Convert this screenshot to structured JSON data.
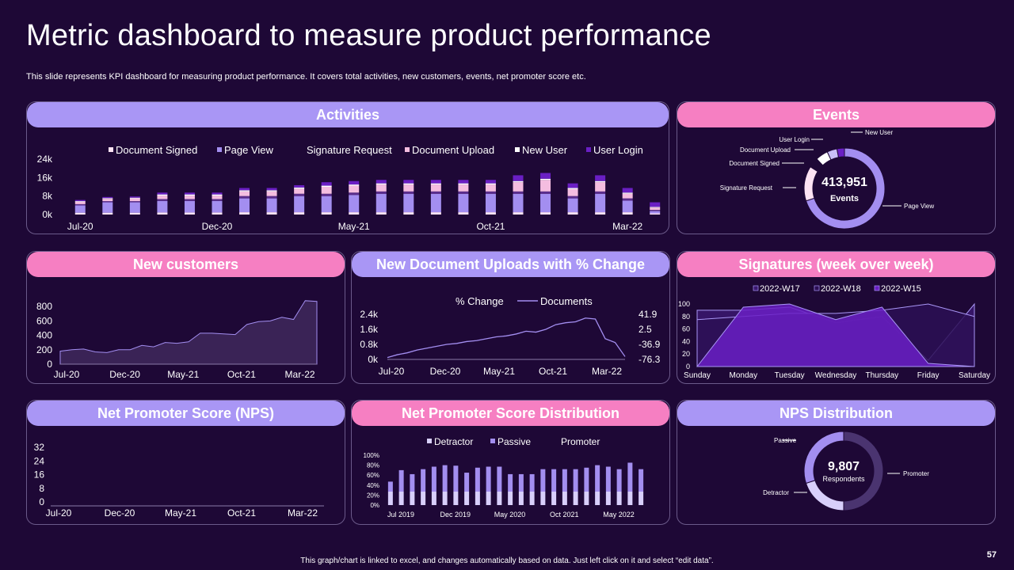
{
  "page": {
    "title": "Metric dashboard to measure product performance",
    "subtitle": "This slide represents KPI dashboard for measuring product performance. It covers total activities, new customers, events, net promoter score etc.",
    "footer": "This graph/chart is linked to excel, and changes automatically based on data. Just left click on it and select “edit data”.",
    "page_number": "57"
  },
  "colors": {
    "background": "#1e0836",
    "header_purple": "#a996f5",
    "header_pink": "#f67fc2",
    "bar_light": "#fde3f3",
    "bar_lavender": "#a38ef0",
    "bar_pale": "#f4bde0",
    "bar_purple": "#6a1fc4"
  },
  "panels": {
    "activities": "Activities",
    "events": "Events",
    "new_customers": "New customers",
    "uploads": "New Document Uploads with % Change",
    "signatures": "Signatures (week over week)",
    "nps": "Net Promoter Score (NPS)",
    "nps_dist": "Net Promoter Score Distribution",
    "nps_donut": "NPS Distribution"
  },
  "chart_data": [
    {
      "id": "activities",
      "type": "bar",
      "stacked": true,
      "legend": [
        "Document Signed",
        "Page View",
        "Signature Request",
        "Document Upload",
        "New User",
        "User Login"
      ],
      "x_tick_labels": [
        "Jul-20",
        "Dec-20",
        "May-21",
        "Oct-21",
        "Mar-22"
      ],
      "x_tick_index": [
        0,
        5,
        10,
        15,
        20
      ],
      "y_ticks": [
        "0k",
        "8k",
        "16k",
        "24k"
      ],
      "ylim": [
        0,
        24
      ],
      "series": [
        {
          "name": "Document Signed",
          "color": "#fde3f3",
          "values": [
            0.8,
            0.8,
            0.8,
            0.9,
            0.9,
            0.9,
            1,
            1,
            1,
            1,
            1,
            1,
            1,
            1,
            1,
            1,
            1,
            1,
            1,
            1,
            1,
            0.5
          ]
        },
        {
          "name": "Page View",
          "color": "#a38ef0",
          "values": [
            3.2,
            4.5,
            4.5,
            5,
            5,
            5,
            6,
            6,
            7,
            7,
            7.5,
            8,
            8,
            8,
            8,
            8,
            8,
            8,
            6,
            8,
            5,
            1
          ]
        },
        {
          "name": "Signature Request",
          "color": "#5a2d8c",
          "values": [
            0.5,
            0.5,
            0.5,
            0.8,
            0.8,
            0.8,
            1,
            1,
            1,
            1,
            1,
            1,
            1,
            1,
            1,
            1,
            1,
            1,
            1,
            1,
            1,
            0.5
          ]
        },
        {
          "name": "Document Upload",
          "color": "#f4bde0",
          "values": [
            1,
            1,
            1.2,
            1.5,
            1.5,
            1.5,
            2,
            2,
            2.2,
            3,
            3,
            3,
            3,
            3,
            3,
            3,
            4,
            5,
            3,
            4,
            2,
            1
          ]
        },
        {
          "name": "New User",
          "color": "#ffffff",
          "values": [
            0.3,
            0.3,
            0.3,
            0.5,
            0.5,
            0.5,
            0.5,
            0.5,
            0.5,
            0.5,
            0.5,
            0.5,
            0.5,
            0.5,
            0.5,
            0.5,
            0.5,
            0.5,
            0.5,
            0.5,
            0.5,
            0.3
          ]
        },
        {
          "name": "User Login",
          "color": "#6a1fc4",
          "values": [
            0.5,
            0.5,
            0.5,
            0.8,
            0.8,
            0.8,
            1,
            1,
            1,
            1.5,
            1.5,
            1.5,
            1.5,
            1.5,
            1.5,
            1.5,
            2.5,
            2.5,
            2,
            2.5,
            2,
            2
          ]
        }
      ]
    },
    {
      "id": "events",
      "type": "pie",
      "center_value": "413,951",
      "center_label": "Events",
      "slices": [
        {
          "name": "Page View",
          "value": 70,
          "color": "#a38ef0"
        },
        {
          "name": "Signature Request",
          "value": 14,
          "color": "#fde3f3"
        },
        {
          "name": "Document Signed",
          "value": 4,
          "color": "#1e0836"
        },
        {
          "name": "Document Upload",
          "value": 5,
          "color": "#ffffff"
        },
        {
          "name": "User Login",
          "value": 4,
          "color": "#c9bff7"
        },
        {
          "name": "New User",
          "value": 3,
          "color": "#6a1fc4"
        }
      ]
    },
    {
      "id": "new_customers",
      "type": "area",
      "x_tick_labels": [
        "Jul-20",
        "Dec-20",
        "May-21",
        "Oct-21",
        "Mar-22"
      ],
      "x_tick_index": [
        0,
        5,
        10,
        15,
        20
      ],
      "y_ticks": [
        "0",
        "200",
        "400",
        "600",
        "800"
      ],
      "ylim": [
        0,
        900
      ],
      "values": [
        180,
        200,
        210,
        170,
        160,
        200,
        200,
        260,
        240,
        300,
        290,
        310,
        430,
        430,
        420,
        410,
        550,
        590,
        600,
        650,
        620,
        880,
        870
      ]
    },
    {
      "id": "uploads",
      "type": "line",
      "legend": [
        "% Change",
        "Documents"
      ],
      "x_tick_labels": [
        "Jul-20",
        "Dec-20",
        "May-21",
        "Oct-21",
        "Mar-22"
      ],
      "x_tick_index": [
        0,
        5,
        10,
        15,
        20
      ],
      "y_ticks_left": [
        "0k",
        "0.8k",
        "1.6k",
        "2.4k"
      ],
      "y_ticks_right": [
        "-76.3",
        "-36.9",
        "2.5",
        "41.9"
      ],
      "ylim": [
        0,
        2.4
      ],
      "series": [
        {
          "name": "Documents",
          "values": [
            0.1,
            0.25,
            0.35,
            0.5,
            0.6,
            0.7,
            0.8,
            0.85,
            0.95,
            1.0,
            1.1,
            1.2,
            1.25,
            1.35,
            1.5,
            1.45,
            1.6,
            1.85,
            1.95,
            2.0,
            2.2,
            2.15,
            1.1,
            0.9,
            0.15
          ]
        }
      ]
    },
    {
      "id": "signatures",
      "type": "area",
      "legend": [
        "2022-W17",
        "2022-W18",
        "2022-W15"
      ],
      "categories": [
        "Sunday",
        "Monday",
        "Tuesday",
        "Wednesday",
        "Thursday",
        "Friday",
        "Saturday"
      ],
      "y_ticks": [
        "0",
        "20",
        "40",
        "60",
        "80",
        "100"
      ],
      "ylim": [
        0,
        100
      ],
      "series": [
        {
          "name": "2022-W17",
          "color": "#3b1870",
          "values": [
            90,
            90,
            95,
            70,
            80,
            10,
            100
          ]
        },
        {
          "name": "2022-W18",
          "color": "#2c0f55",
          "values": [
            75,
            80,
            85,
            85,
            90,
            100,
            80
          ]
        },
        {
          "name": "2022-W15",
          "color": "#6a1fc4",
          "values": [
            0,
            95,
            100,
            75,
            95,
            5,
            0
          ]
        }
      ]
    },
    {
      "id": "nps",
      "type": "line",
      "x_tick_labels": [
        "Jul-20",
        "Dec-20",
        "May-21",
        "Oct-21",
        "Mar-22"
      ],
      "y_ticks": [
        "0",
        "8",
        "16",
        "24",
        "32"
      ],
      "ylim": [
        0,
        32
      ],
      "values": []
    },
    {
      "id": "nps_dist",
      "type": "bar",
      "stacked": true,
      "legend": [
        "Detractor",
        "Passive",
        "Promoter"
      ],
      "x_tick_labels": [
        "Jul 2019",
        "Dec 2019",
        "May 2020",
        "Oct 2021",
        "May 2022"
      ],
      "x_tick_index": [
        0,
        5,
        10,
        15,
        20
      ],
      "y_ticks": [
        "0%",
        "20%",
        "40%",
        "60%",
        "80%",
        "100%"
      ],
      "ylim": [
        0,
        100
      ],
      "series": [
        {
          "name": "Detractor",
          "color": "#d8cffb",
          "values": [
            27,
            27,
            27,
            27,
            27,
            27,
            27,
            27,
            27,
            27,
            27,
            27,
            27,
            27,
            27,
            27,
            27,
            27,
            27,
            27,
            27,
            27,
            27,
            27
          ]
        },
        {
          "name": "Passive",
          "color": "#a38ef0",
          "values": [
            20,
            43,
            35,
            45,
            50,
            53,
            52,
            38,
            48,
            50,
            50,
            35,
            35,
            35,
            45,
            45,
            45,
            45,
            48,
            53,
            50,
            45,
            58,
            45
          ]
        }
      ]
    },
    {
      "id": "nps_donut",
      "type": "pie",
      "center_value": "9,807",
      "center_label": "Respondents",
      "slices": [
        {
          "name": "Promoter",
          "value": 50,
          "color": "#4a3470"
        },
        {
          "name": "Detractor",
          "value": 20,
          "color": "#d8cffb"
        },
        {
          "name": "Passive",
          "value": 30,
          "color": "#a38ef0"
        }
      ]
    }
  ]
}
